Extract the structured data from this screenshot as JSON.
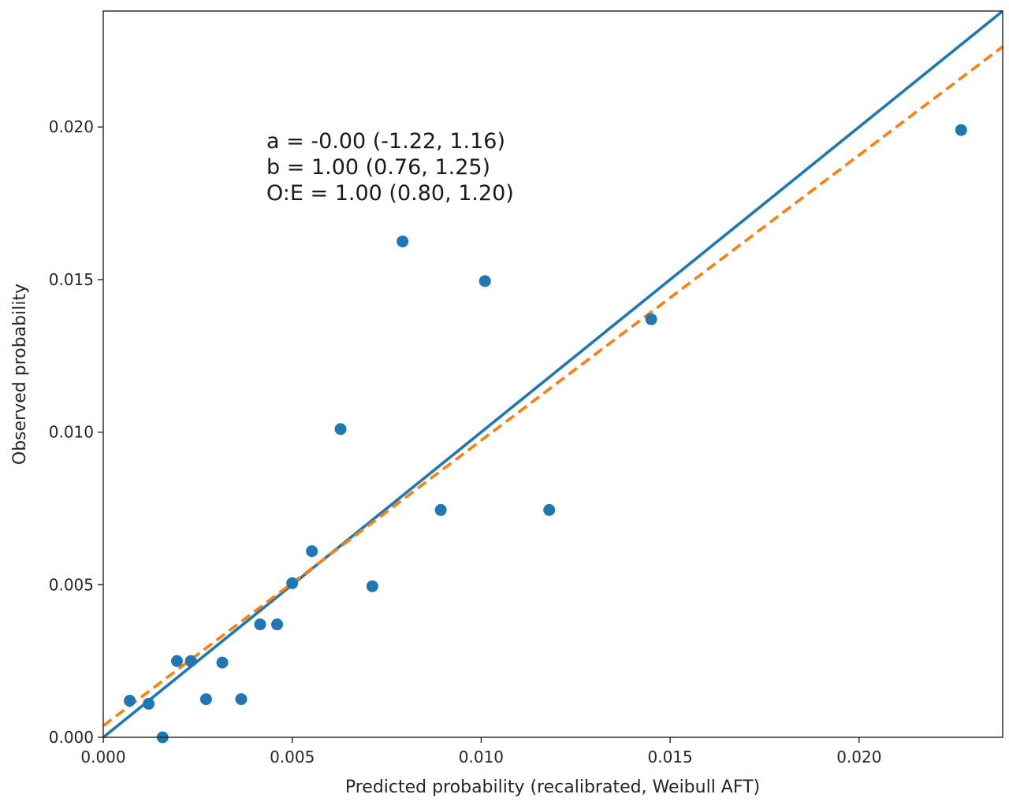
{
  "chart_data": {
    "type": "scatter",
    "title": "",
    "xlabel": "Predicted probability (recalibrated, Weibull AFT)",
    "ylabel": "Observed probability",
    "xlim": [
      0.0,
      0.0238
    ],
    "ylim": [
      0.0,
      0.0238
    ],
    "xticks": [
      "0.000",
      "0.005",
      "0.010",
      "0.015",
      "0.020"
    ],
    "yticks": [
      "0.000",
      "0.005",
      "0.010",
      "0.015",
      "0.020"
    ],
    "xtick_values": [
      0.0,
      0.005,
      0.01,
      0.015,
      0.02
    ],
    "ytick_values": [
      0.0,
      0.005,
      0.01,
      0.015,
      0.02
    ],
    "grid": false,
    "points_color": "#1f77b4",
    "points": [
      {
        "x": 0.0007,
        "y": 0.0012
      },
      {
        "x": 0.0012,
        "y": 0.0011
      },
      {
        "x": 0.00157,
        "y": 0.0
      },
      {
        "x": 0.00195,
        "y": 0.0025
      },
      {
        "x": 0.00232,
        "y": 0.0025
      },
      {
        "x": 0.00272,
        "y": 0.00125
      },
      {
        "x": 0.00315,
        "y": 0.00245
      },
      {
        "x": 0.00365,
        "y": 0.00125
      },
      {
        "x": 0.00415,
        "y": 0.0037
      },
      {
        "x": 0.0046,
        "y": 0.0037
      },
      {
        "x": 0.005,
        "y": 0.00505
      },
      {
        "x": 0.00552,
        "y": 0.0061
      },
      {
        "x": 0.00628,
        "y": 0.0101
      },
      {
        "x": 0.00712,
        "y": 0.00495
      },
      {
        "x": 0.00792,
        "y": 0.01625
      },
      {
        "x": 0.00893,
        "y": 0.00745
      },
      {
        "x": 0.0101,
        "y": 0.01495
      },
      {
        "x": 0.0118,
        "y": 0.00745
      },
      {
        "x": 0.0145,
        "y": 0.0137
      },
      {
        "x": 0.0227,
        "y": 0.0199
      }
    ],
    "lines": [
      {
        "style": "solid",
        "color": "#1f77b4",
        "intercept": 0.0,
        "slope": 1.0
      },
      {
        "style": "dashed",
        "color": "#ff7f0e",
        "intercept": 0.00038,
        "slope": 0.935
      }
    ],
    "annotations": [
      "a = -0.00 (-1.22, 1.16)",
      "b = 1.00 (0.76, 1.25)",
      "O:E = 1.00 (0.80, 1.20)"
    ]
  }
}
